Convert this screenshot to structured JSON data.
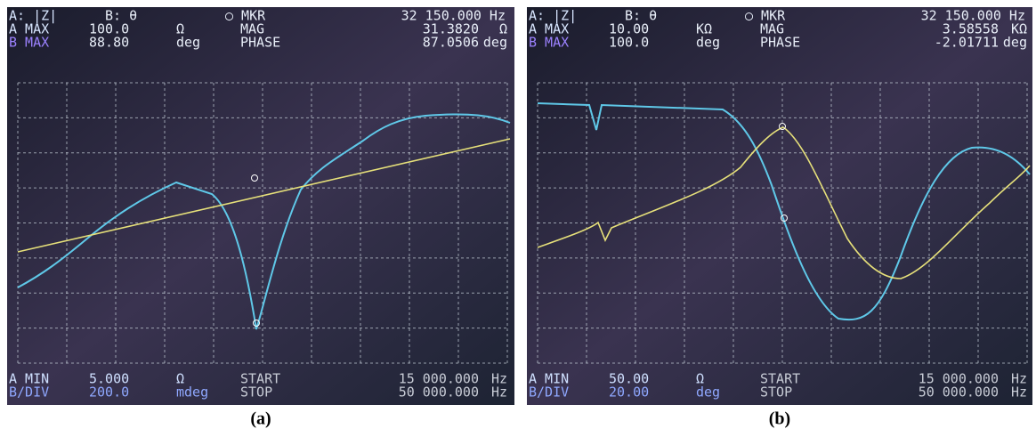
{
  "panels": [
    {
      "header": [
        [
          "A: |Z|",
          "B: θ",
          "○ MKR",
          "32 150.000 Hz"
        ],
        [
          "A MAX",
          "100.0",
          "Ω",
          "MAG",
          "31.3820",
          "Ω"
        ],
        [
          "B MAX",
          "88.80",
          "deg",
          "PHASE",
          "87.0506",
          "deg"
        ]
      ],
      "footer": [
        [
          "A MIN",
          "5.000",
          "Ω",
          "START",
          "15 000.000",
          "Hz"
        ],
        [
          "B/DIV",
          "200.0",
          "mdeg",
          "STOP",
          "50 000.000",
          "Hz"
        ]
      ],
      "caption": "(a)"
    },
    {
      "header": [
        [
          "A: |Z|",
          "B: θ",
          "○ MKR",
          "32 150.000 Hz"
        ],
        [
          "A MAX",
          "10.00",
          "KΩ",
          "MAG",
          "3.58558",
          "KΩ"
        ],
        [
          "B MAX",
          "100.0",
          "deg",
          "PHASE",
          "-2.01711",
          "deg"
        ]
      ],
      "footer": [
        [
          "A MIN",
          "50.00",
          "Ω",
          "START",
          "15 000.000",
          "Hz"
        ],
        [
          "B/DIV",
          "20.00",
          "deg",
          "STOP",
          "50 000.000",
          "Hz"
        ]
      ],
      "caption": "(b)"
    }
  ]
}
